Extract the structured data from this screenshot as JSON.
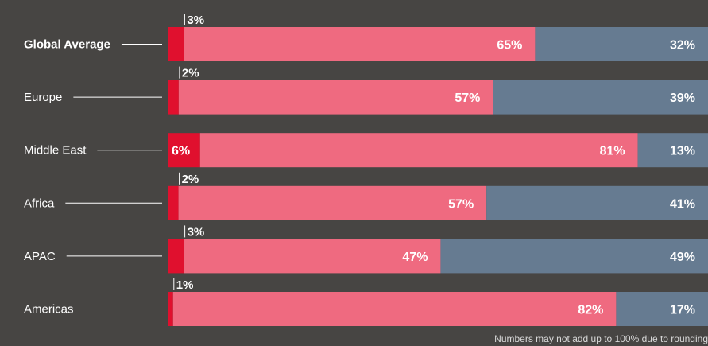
{
  "chart_data": {
    "type": "bar",
    "stacked": true,
    "orientation": "horizontal",
    "categories": [
      "Global Average",
      "Europe",
      "Middle East",
      "Africa",
      "APAC",
      "Americas"
    ],
    "highlight_category": "Global Average",
    "series": [
      {
        "values": [
          3,
          2,
          6,
          2,
          3,
          1
        ],
        "color": "#e0102e"
      },
      {
        "values": [
          65,
          57,
          81,
          57,
          47,
          82
        ],
        "color": "#ef6a80"
      },
      {
        "values": [
          32,
          39,
          13,
          41,
          49,
          17
        ],
        "color": "#667b91"
      }
    ],
    "value_labels": [
      [
        "3%",
        "65%",
        "32%"
      ],
      [
        "2%",
        "57%",
        "39%"
      ],
      [
        "6%",
        "81%",
        "13%"
      ],
      [
        "2%",
        "57%",
        "41%"
      ],
      [
        "3%",
        "47%",
        "49%"
      ],
      [
        "1%",
        "82%",
        "17%"
      ]
    ],
    "xlim": [
      0,
      100
    ],
    "gridlines": false,
    "legend": "none"
  },
  "footnote": "Numbers may not add up to 100% due to rounding"
}
